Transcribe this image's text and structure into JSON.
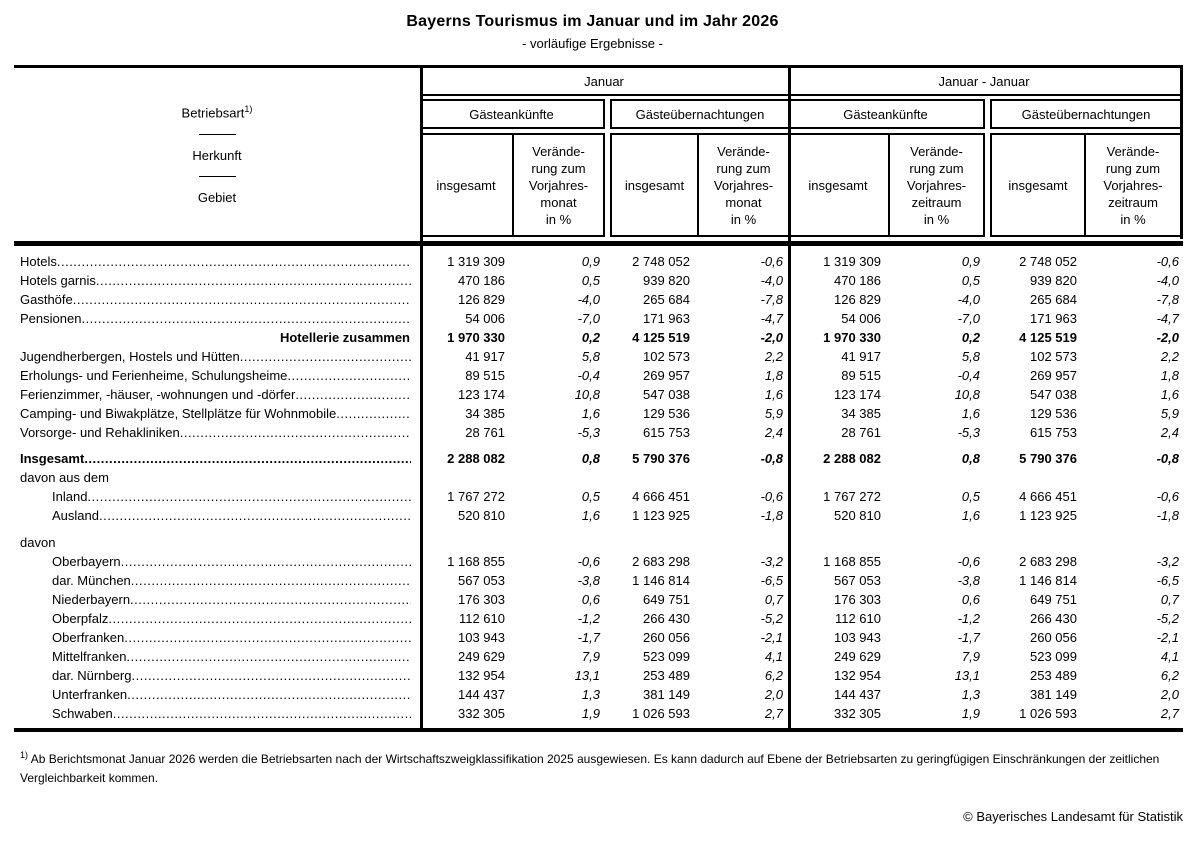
{
  "page": {
    "title": "Bayerns Tourismus im Januar und im Jahr 2026",
    "subtitle": "- vorläufige Ergebnisse -",
    "footnote_marker": "1)",
    "footnote_text": " Ab Berichtsmonat Januar 2026 werden die Betriebsarten nach der Wirtschaftszweigklassifikation 2025 ausgewiesen. Es kann dadurch auf Ebene der Betriebsarten zu geringfügigen Einschränkungen der zeitlichen Vergleichbarkeit kommen.",
    "copyright": "© Bayerisches Landesamt für Statistik"
  },
  "table": {
    "stub": {
      "line1": "Betriebsart",
      "line1_sup": "1)",
      "line2": "Herkunft",
      "line3": "Gebiet"
    },
    "header": {
      "groups": [
        "Januar",
        "Januar - Januar"
      ],
      "subgroups": [
        "Gästeankünfte",
        "Gästeübernachtungen",
        "Gästeankünfte",
        "Gästeübernachtungen"
      ],
      "insgesamt": "insgesamt",
      "change_month": "Verände-\nrung zum\nVorjahres-\nmonat\nin %",
      "change_period": "Verände-\nrung zum\nVorjahres-\nzeitraum\nin %"
    },
    "rows": [
      {
        "label": "Hotels",
        "dots": true,
        "values": [
          "1 319 309",
          "0,9",
          "2 748 052",
          "-0,6",
          "1 319 309",
          "0,9",
          "2 748 052",
          "-0,6"
        ]
      },
      {
        "label": "Hotels garnis",
        "dots": true,
        "values": [
          "470 186",
          "0,5",
          "939 820",
          "-4,0",
          "470 186",
          "0,5",
          "939 820",
          "-4,0"
        ]
      },
      {
        "label": "Gasthöfe",
        "dots": true,
        "values": [
          "126 829",
          "-4,0",
          "265 684",
          "-7,8",
          "126 829",
          "-4,0",
          "265 684",
          "-7,8"
        ]
      },
      {
        "label": "Pensionen",
        "dots": true,
        "values": [
          "54 006",
          "-7,0",
          "171 963",
          "-4,7",
          "54 006",
          "-7,0",
          "171 963",
          "-4,7"
        ]
      },
      {
        "label": "Hotellerie zusammen",
        "bold": true,
        "align": "right",
        "dots": false,
        "values": [
          "1 970 330",
          "0,2",
          "4 125 519",
          "-2,0",
          "1 970 330",
          "0,2",
          "4 125 519",
          "-2,0"
        ]
      },
      {
        "label": "Jugendherbergen, Hostels und Hütten",
        "dots": true,
        "values": [
          "41 917",
          "5,8",
          "102 573",
          "2,2",
          "41 917",
          "5,8",
          "102 573",
          "2,2"
        ]
      },
      {
        "label": "Erholungs- und Ferienheime, Schulungsheime",
        "dots": true,
        "values": [
          "89 515",
          "-0,4",
          "269 957",
          "1,8",
          "89 515",
          "-0,4",
          "269 957",
          "1,8"
        ]
      },
      {
        "label": "Ferienzimmer, -häuser, -wohnungen und -dörfer",
        "dots": true,
        "values": [
          "123 174",
          "10,8",
          "547 038",
          "1,6",
          "123 174",
          "10,8",
          "547 038",
          "1,6"
        ]
      },
      {
        "label": "Camping- und Biwakplätze, Stellplätze für Wohnmobile",
        "dots": true,
        "values": [
          "34 385",
          "1,6",
          "129 536",
          "5,9",
          "34 385",
          "1,6",
          "129 536",
          "5,9"
        ]
      },
      {
        "label": "Vorsorge- und Rehakliniken",
        "dots": true,
        "values": [
          "28 761",
          "-5,3",
          "615 753",
          "2,4",
          "28 761",
          "-5,3",
          "615 753",
          "2,4"
        ]
      },
      {
        "spacer": "a"
      },
      {
        "label": "Insgesamt",
        "bold": true,
        "dots": true,
        "values": [
          "2 288 082",
          "0,8",
          "5 790 376",
          "-0,8",
          "2 288 082",
          "0,8",
          "5 790 376",
          "-0,8"
        ]
      },
      {
        "label": "davon aus dem",
        "dots": false,
        "values": []
      },
      {
        "label": "Inland",
        "indent": true,
        "dots": true,
        "values": [
          "1 767 272",
          "0,5",
          "4 666 451",
          "-0,6",
          "1 767 272",
          "0,5",
          "4 666 451",
          "-0,6"
        ]
      },
      {
        "label": "Ausland",
        "indent": true,
        "dots": true,
        "values": [
          "520 810",
          "1,6",
          "1 123 925",
          "-1,8",
          "520 810",
          "1,6",
          "1 123 925",
          "-1,8"
        ]
      },
      {
        "spacer": "b"
      },
      {
        "label": "davon",
        "dots": false,
        "values": []
      },
      {
        "label": "Oberbayern",
        "indent": true,
        "dots": true,
        "values": [
          "1 168 855",
          "-0,6",
          "2 683 298",
          "-3,2",
          "1 168 855",
          "-0,6",
          "2 683 298",
          "-3,2"
        ]
      },
      {
        "label": "dar. München",
        "indent": true,
        "dots": true,
        "values": [
          "567 053",
          "-3,8",
          "1 146 814",
          "-6,5",
          "567 053",
          "-3,8",
          "1 146 814",
          "-6,5"
        ]
      },
      {
        "label": "Niederbayern",
        "indent": true,
        "dots": true,
        "values": [
          "176 303",
          "0,6",
          "649 751",
          "0,7",
          "176 303",
          "0,6",
          "649 751",
          "0,7"
        ]
      },
      {
        "label": "Oberpfalz",
        "indent": true,
        "dots": true,
        "values": [
          "112 610",
          "-1,2",
          "266 430",
          "-5,2",
          "112 610",
          "-1,2",
          "266 430",
          "-5,2"
        ]
      },
      {
        "label": "Oberfranken",
        "indent": true,
        "dots": true,
        "values": [
          "103 943",
          "-1,7",
          "260 056",
          "-2,1",
          "103 943",
          "-1,7",
          "260 056",
          "-2,1"
        ]
      },
      {
        "label": "Mittelfranken",
        "indent": true,
        "dots": true,
        "values": [
          "249 629",
          "7,9",
          "523 099",
          "4,1",
          "249 629",
          "7,9",
          "523 099",
          "4,1"
        ]
      },
      {
        "label": "dar. Nürnberg",
        "indent": true,
        "dots": true,
        "values": [
          "132 954",
          "13,1",
          "253 489",
          "6,2",
          "132 954",
          "13,1",
          "253 489",
          "6,2"
        ]
      },
      {
        "label": "Unterfranken",
        "indent": true,
        "dots": true,
        "values": [
          "144 437",
          "1,3",
          "381 149",
          "2,0",
          "144 437",
          "1,3",
          "381 149",
          "2,0"
        ]
      },
      {
        "label": "Schwaben",
        "indent": true,
        "dots": true,
        "values": [
          "332 305",
          "1,9",
          "1 026 593",
          "2,7",
          "332 305",
          "1,9",
          "1 026 593",
          "2,7"
        ]
      }
    ]
  }
}
